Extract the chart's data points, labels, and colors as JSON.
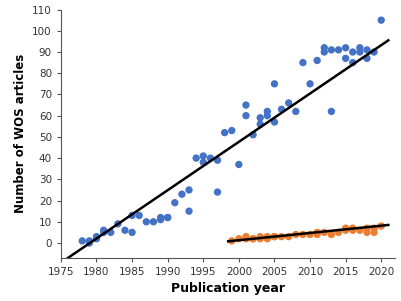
{
  "blue_x": [
    1978,
    1979,
    1979,
    1980,
    1980,
    1981,
    1981,
    1982,
    1983,
    1984,
    1985,
    1985,
    1986,
    1987,
    1988,
    1989,
    1989,
    1990,
    1990,
    1991,
    1992,
    1993,
    1993,
    1994,
    1995,
    1995,
    1996,
    1997,
    1997,
    1998,
    1999,
    2000,
    2001,
    2001,
    2002,
    2003,
    2003,
    2004,
    2004,
    2005,
    2005,
    2006,
    2007,
    2008,
    2009,
    2010,
    2011,
    2012,
    2012,
    2013,
    2013,
    2014,
    2015,
    2015,
    2016,
    2016,
    2017,
    2017,
    2018,
    2018,
    2019,
    2020
  ],
  "blue_y": [
    1,
    0,
    1,
    3,
    2,
    6,
    5,
    5,
    9,
    6,
    5,
    13,
    13,
    10,
    10,
    11,
    12,
    12,
    12,
    19,
    23,
    25,
    15,
    40,
    41,
    38,
    40,
    39,
    24,
    52,
    53,
    37,
    60,
    65,
    51,
    59,
    56,
    60,
    62,
    57,
    75,
    63,
    66,
    62,
    85,
    75,
    86,
    90,
    92,
    91,
    62,
    91,
    87,
    92,
    90,
    85,
    92,
    90,
    91,
    87,
    90,
    105
  ],
  "orange_x": [
    1999,
    2000,
    2001,
    2001,
    2002,
    2002,
    2003,
    2003,
    2004,
    2004,
    2005,
    2005,
    2006,
    2007,
    2008,
    2009,
    2010,
    2011,
    2011,
    2012,
    2013,
    2014,
    2015,
    2015,
    2016,
    2016,
    2017,
    2018,
    2018,
    2019,
    2019,
    2020
  ],
  "orange_y": [
    1,
    2,
    2,
    3,
    2,
    2,
    3,
    2,
    3,
    2,
    3,
    3,
    3,
    3,
    4,
    4,
    4,
    4,
    5,
    5,
    4,
    5,
    6,
    7,
    7,
    6,
    6,
    5,
    7,
    7,
    5,
    8
  ],
  "blue_line_x": [
    1976,
    2021
  ],
  "blue_line_y": [
    -7.0,
    95.5
  ],
  "orange_line_x": [
    1998.5,
    2021
  ],
  "orange_line_y": [
    0.8,
    8.5
  ],
  "xlabel": "Publication year",
  "ylabel": "Number of WOS articles",
  "xlim": [
    1975,
    2022
  ],
  "ylim": [
    -7,
    110
  ],
  "yticks": [
    0,
    10,
    20,
    30,
    40,
    50,
    60,
    70,
    80,
    90,
    100,
    110
  ],
  "xticks": [
    1975,
    1980,
    1985,
    1990,
    1995,
    2000,
    2005,
    2010,
    2015,
    2020
  ],
  "blue_color": "#4472C4",
  "orange_color": "#ED7D31",
  "line_color": "#000000",
  "bg_color": "#FFFFFF",
  "marker_size": 28,
  "line_width": 1.8,
  "xlabel_fontsize": 9,
  "ylabel_fontsize": 8.5,
  "tick_fontsize": 7.5
}
